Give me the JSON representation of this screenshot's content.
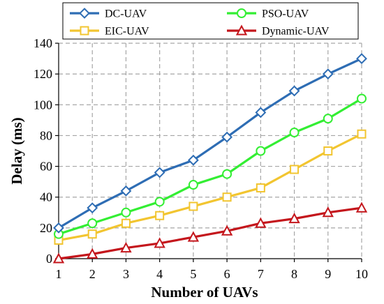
{
  "chart_data": {
    "type": "line",
    "title": "",
    "xlabel": "Number of UAVs",
    "ylabel": "Delay (ms)",
    "x": [
      1,
      2,
      3,
      4,
      5,
      6,
      7,
      8,
      9,
      10
    ],
    "xlim": [
      1,
      10
    ],
    "ylim": [
      0,
      140
    ],
    "yticks": [
      0,
      20,
      40,
      60,
      80,
      100,
      120,
      140
    ],
    "grid": true,
    "legend_position": "top",
    "series": [
      {
        "name": "DC-UAV",
        "color": "#2e6db4",
        "marker": "diamond",
        "values": [
          20,
          33,
          44,
          56,
          64,
          79,
          95,
          109,
          120,
          130
        ]
      },
      {
        "name": "PSO-UAV",
        "color": "#33ee33",
        "marker": "circle",
        "values": [
          16,
          23,
          30,
          37,
          48,
          55,
          70,
          82,
          91,
          104
        ]
      },
      {
        "name": "EIC-UAV",
        "color": "#f2c530",
        "marker": "square",
        "values": [
          12,
          16,
          23,
          28,
          34,
          40,
          46,
          58,
          70,
          81
        ]
      },
      {
        "name": "Dynamic-UAV",
        "color": "#c4161c",
        "marker": "triangle",
        "values": [
          0,
          3,
          7,
          10,
          14,
          18,
          23,
          26,
          30,
          33
        ]
      }
    ]
  }
}
